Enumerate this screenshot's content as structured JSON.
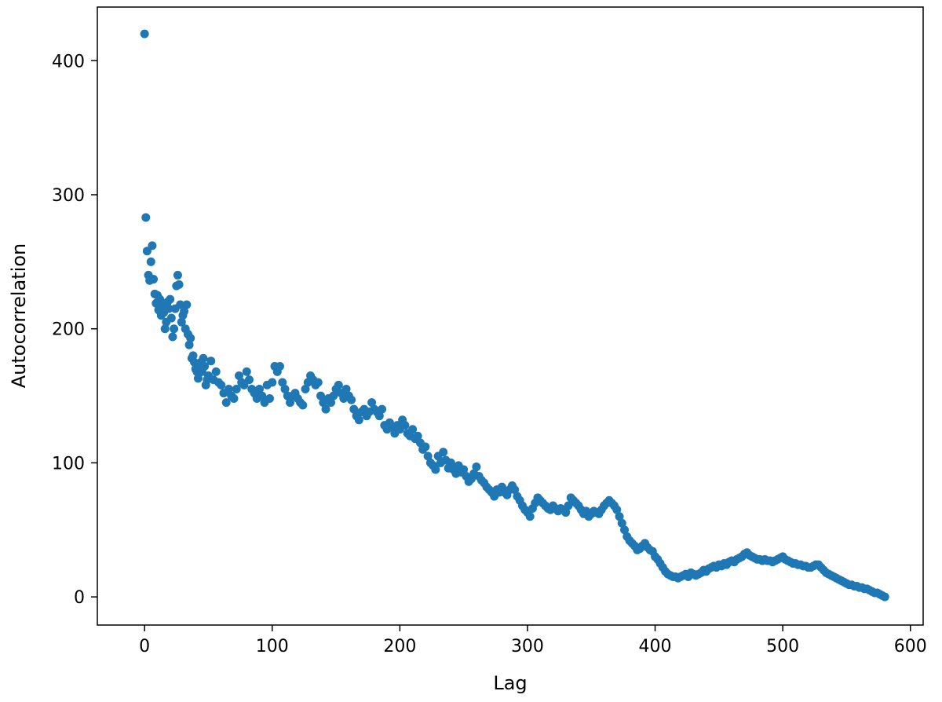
{
  "chart_data": {
    "type": "scatter",
    "title": "",
    "xlabel": "Lag",
    "ylabel": "Autocorrelation",
    "xlim": [
      -37,
      610
    ],
    "ylim": [
      -21,
      440
    ],
    "xticks": [
      0,
      100,
      200,
      300,
      400,
      500,
      600
    ],
    "yticks": [
      0,
      100,
      200,
      300,
      400
    ],
    "grid": false,
    "color": "#1f77b4",
    "points": [
      [
        0,
        420
      ],
      [
        1,
        283
      ],
      [
        2,
        258
      ],
      [
        3,
        240
      ],
      [
        4,
        236
      ],
      [
        5,
        250
      ],
      [
        6,
        262
      ],
      [
        7,
        237
      ],
      [
        8,
        226
      ],
      [
        9,
        219
      ],
      [
        10,
        225
      ],
      [
        11,
        214
      ],
      [
        12,
        222
      ],
      [
        13,
        210
      ],
      [
        14,
        218
      ],
      [
        15,
        212
      ],
      [
        16,
        200
      ],
      [
        17,
        205
      ],
      [
        18,
        220
      ],
      [
        19,
        215
      ],
      [
        20,
        222
      ],
      [
        21,
        208
      ],
      [
        22,
        194
      ],
      [
        23,
        200
      ],
      [
        24,
        215
      ],
      [
        25,
        232
      ],
      [
        26,
        240
      ],
      [
        27,
        233
      ],
      [
        28,
        218
      ],
      [
        29,
        205
      ],
      [
        30,
        210
      ],
      [
        31,
        213
      ],
      [
        32,
        200
      ],
      [
        33,
        218
      ],
      [
        34,
        196
      ],
      [
        35,
        188
      ],
      [
        36,
        193
      ],
      [
        37,
        178
      ],
      [
        38,
        180
      ],
      [
        39,
        175
      ],
      [
        40,
        170
      ],
      [
        41,
        168
      ],
      [
        42,
        163
      ],
      [
        43,
        172
      ],
      [
        44,
        175
      ],
      [
        45,
        168
      ],
      [
        46,
        178
      ],
      [
        47,
        172
      ],
      [
        48,
        158
      ],
      [
        49,
        162
      ],
      [
        50,
        165
      ],
      [
        52,
        176
      ],
      [
        54,
        162
      ],
      [
        56,
        168
      ],
      [
        58,
        160
      ],
      [
        60,
        158
      ],
      [
        62,
        152
      ],
      [
        64,
        145
      ],
      [
        66,
        155
      ],
      [
        68,
        150
      ],
      [
        70,
        148
      ],
      [
        72,
        155
      ],
      [
        74,
        165
      ],
      [
        76,
        160
      ],
      [
        78,
        158
      ],
      [
        80,
        168
      ],
      [
        82,
        162
      ],
      [
        84,
        155
      ],
      [
        86,
        152
      ],
      [
        88,
        148
      ],
      [
        90,
        155
      ],
      [
        92,
        150
      ],
      [
        94,
        145
      ],
      [
        96,
        158
      ],
      [
        98,
        148
      ],
      [
        100,
        160
      ],
      [
        102,
        172
      ],
      [
        104,
        168
      ],
      [
        106,
        172
      ],
      [
        108,
        160
      ],
      [
        110,
        155
      ],
      [
        112,
        150
      ],
      [
        114,
        145
      ],
      [
        116,
        150
      ],
      [
        118,
        152
      ],
      [
        120,
        148
      ],
      [
        122,
        145
      ],
      [
        124,
        143
      ],
      [
        126,
        155
      ],
      [
        128,
        160
      ],
      [
        130,
        165
      ],
      [
        132,
        162
      ],
      [
        134,
        158
      ],
      [
        136,
        160
      ],
      [
        138,
        150
      ],
      [
        140,
        145
      ],
      [
        142,
        140
      ],
      [
        144,
        148
      ],
      [
        146,
        145
      ],
      [
        148,
        150
      ],
      [
        150,
        155
      ],
      [
        152,
        158
      ],
      [
        154,
        152
      ],
      [
        156,
        148
      ],
      [
        158,
        155
      ],
      [
        160,
        150
      ],
      [
        162,
        147
      ],
      [
        164,
        140
      ],
      [
        166,
        135
      ],
      [
        168,
        132
      ],
      [
        170,
        138
      ],
      [
        172,
        140
      ],
      [
        174,
        135
      ],
      [
        176,
        138
      ],
      [
        178,
        145
      ],
      [
        180,
        140
      ],
      [
        182,
        138
      ],
      [
        184,
        135
      ],
      [
        186,
        140
      ],
      [
        188,
        128
      ],
      [
        190,
        125
      ],
      [
        192,
        130
      ],
      [
        194,
        127
      ],
      [
        196,
        122
      ],
      [
        198,
        128
      ],
      [
        200,
        125
      ],
      [
        202,
        132
      ],
      [
        204,
        128
      ],
      [
        206,
        122
      ],
      [
        208,
        120
      ],
      [
        210,
        125
      ],
      [
        212,
        118
      ],
      [
        214,
        120
      ],
      [
        216,
        115
      ],
      [
        218,
        110
      ],
      [
        220,
        112
      ],
      [
        222,
        105
      ],
      [
        224,
        100
      ],
      [
        226,
        98
      ],
      [
        228,
        95
      ],
      [
        230,
        105
      ],
      [
        232,
        100
      ],
      [
        234,
        108
      ],
      [
        236,
        102
      ],
      [
        238,
        96
      ],
      [
        240,
        100
      ],
      [
        242,
        95
      ],
      [
        244,
        92
      ],
      [
        246,
        98
      ],
      [
        248,
        93
      ],
      [
        250,
        95
      ],
      [
        252,
        90
      ],
      [
        254,
        86
      ],
      [
        256,
        88
      ],
      [
        258,
        92
      ],
      [
        260,
        97
      ],
      [
        262,
        90
      ],
      [
        264,
        87
      ],
      [
        266,
        85
      ],
      [
        268,
        82
      ],
      [
        270,
        80
      ],
      [
        272,
        78
      ],
      [
        274,
        75
      ],
      [
        276,
        80
      ],
      [
        278,
        78
      ],
      [
        280,
        82
      ],
      [
        282,
        78
      ],
      [
        284,
        76
      ],
      [
        286,
        80
      ],
      [
        288,
        83
      ],
      [
        290,
        80
      ],
      [
        292,
        75
      ],
      [
        294,
        72
      ],
      [
        296,
        68
      ],
      [
        298,
        65
      ],
      [
        300,
        63
      ],
      [
        302,
        60
      ],
      [
        304,
        66
      ],
      [
        306,
        70
      ],
      [
        308,
        74
      ],
      [
        310,
        72
      ],
      [
        312,
        70
      ],
      [
        314,
        68
      ],
      [
        316,
        66
      ],
      [
        318,
        65
      ],
      [
        320,
        68
      ],
      [
        322,
        66
      ],
      [
        324,
        64
      ],
      [
        326,
        66
      ],
      [
        328,
        65
      ],
      [
        330,
        63
      ],
      [
        332,
        68
      ],
      [
        334,
        74
      ],
      [
        336,
        72
      ],
      [
        338,
        70
      ],
      [
        340,
        68
      ],
      [
        342,
        65
      ],
      [
        344,
        62
      ],
      [
        346,
        64
      ],
      [
        348,
        60
      ],
      [
        350,
        62
      ],
      [
        352,
        64
      ],
      [
        354,
        63
      ],
      [
        356,
        62
      ],
      [
        358,
        65
      ],
      [
        360,
        68
      ],
      [
        362,
        70
      ],
      [
        364,
        72
      ],
      [
        366,
        70
      ],
      [
        368,
        68
      ],
      [
        370,
        65
      ],
      [
        372,
        60
      ],
      [
        374,
        55
      ],
      [
        376,
        50
      ],
      [
        378,
        45
      ],
      [
        380,
        42
      ],
      [
        382,
        40
      ],
      [
        384,
        38
      ],
      [
        386,
        35
      ],
      [
        388,
        36
      ],
      [
        390,
        38
      ],
      [
        392,
        40
      ],
      [
        394,
        37
      ],
      [
        396,
        35
      ],
      [
        398,
        34
      ],
      [
        400,
        30
      ],
      [
        402,
        28
      ],
      [
        404,
        25
      ],
      [
        406,
        22
      ],
      [
        408,
        19
      ],
      [
        410,
        17
      ],
      [
        412,
        16
      ],
      [
        414,
        15
      ],
      [
        416,
        15
      ],
      [
        418,
        14
      ],
      [
        420,
        15
      ],
      [
        422,
        16
      ],
      [
        424,
        17
      ],
      [
        426,
        15
      ],
      [
        428,
        18
      ],
      [
        430,
        17
      ],
      [
        432,
        16
      ],
      [
        434,
        17
      ],
      [
        436,
        18
      ],
      [
        438,
        20
      ],
      [
        440,
        19
      ],
      [
        442,
        21
      ],
      [
        444,
        22
      ],
      [
        446,
        23
      ],
      [
        448,
        22
      ],
      [
        450,
        24
      ],
      [
        452,
        23
      ],
      [
        454,
        25
      ],
      [
        456,
        24
      ],
      [
        458,
        26
      ],
      [
        460,
        27
      ],
      [
        462,
        26
      ],
      [
        464,
        28
      ],
      [
        466,
        29
      ],
      [
        468,
        30
      ],
      [
        470,
        32
      ],
      [
        472,
        33
      ],
      [
        474,
        31
      ],
      [
        476,
        30
      ],
      [
        478,
        29
      ],
      [
        480,
        28
      ],
      [
        482,
        28
      ],
      [
        484,
        27
      ],
      [
        486,
        28
      ],
      [
        488,
        27
      ],
      [
        490,
        27
      ],
      [
        492,
        26
      ],
      [
        494,
        27
      ],
      [
        496,
        28
      ],
      [
        498,
        29
      ],
      [
        500,
        30
      ],
      [
        502,
        28
      ],
      [
        504,
        27
      ],
      [
        506,
        26
      ],
      [
        508,
        25
      ],
      [
        510,
        25
      ],
      [
        512,
        24
      ],
      [
        514,
        24
      ],
      [
        516,
        23
      ],
      [
        518,
        23
      ],
      [
        520,
        22
      ],
      [
        522,
        22
      ],
      [
        524,
        23
      ],
      [
        526,
        24
      ],
      [
        528,
        24
      ],
      [
        530,
        22
      ],
      [
        532,
        20
      ],
      [
        534,
        18
      ],
      [
        536,
        17
      ],
      [
        538,
        16
      ],
      [
        540,
        15
      ],
      [
        542,
        14
      ],
      [
        544,
        13
      ],
      [
        546,
        12
      ],
      [
        548,
        11
      ],
      [
        550,
        10
      ],
      [
        552,
        9
      ],
      [
        554,
        9
      ],
      [
        556,
        8
      ],
      [
        558,
        8
      ],
      [
        560,
        7
      ],
      [
        562,
        7
      ],
      [
        564,
        6
      ],
      [
        566,
        6
      ],
      [
        568,
        5
      ],
      [
        570,
        4
      ],
      [
        572,
        3
      ],
      [
        574,
        3
      ],
      [
        576,
        2
      ],
      [
        578,
        1
      ],
      [
        580,
        0
      ]
    ]
  }
}
